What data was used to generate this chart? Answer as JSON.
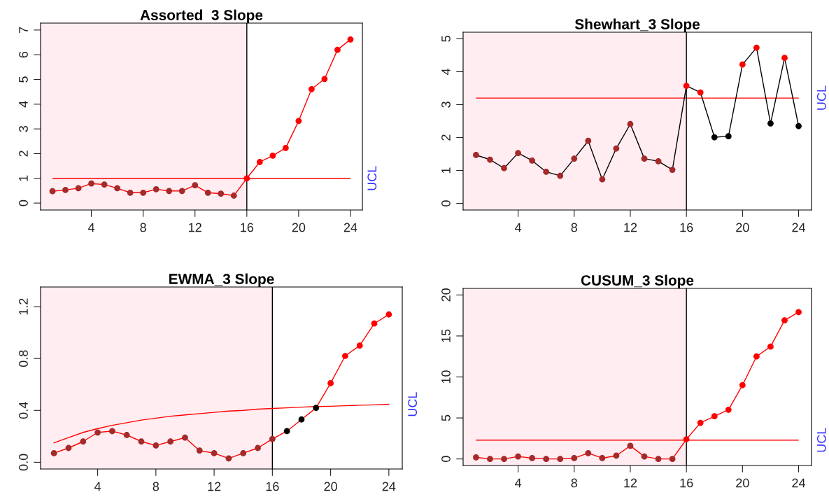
{
  "chart_data": [
    {
      "type": "line",
      "title": "Assorted  3 Slope",
      "x": [
        1,
        2,
        3,
        4,
        5,
        6,
        7,
        8,
        9,
        10,
        11,
        12,
        13,
        14,
        15,
        16,
        17,
        18,
        19,
        20,
        21,
        22,
        23,
        24
      ],
      "series": [
        {
          "color": "#ff0000",
          "values": [
            0.48,
            0.53,
            0.6,
            0.79,
            0.75,
            0.6,
            0.42,
            0.42,
            0.56,
            0.49,
            0.49,
            0.72,
            0.42,
            0.38,
            0.3,
            1.0,
            1.66,
            1.92,
            2.23,
            3.32,
            4.61,
            5.02,
            6.2,
            6.62
          ],
          "colors": [
            "#a52a2a",
            "#a52a2a",
            "#a52a2a",
            "#a52a2a",
            "#a52a2a",
            "#a52a2a",
            "#a52a2a",
            "#a52a2a",
            "#a52a2a",
            "#a52a2a",
            "#a52a2a",
            "#a52a2a",
            "#a52a2a",
            "#a52a2a",
            "#a52a2a",
            "#ff0000",
            "#ff0000",
            "#ff0000",
            "#ff0000",
            "#ff0000",
            "#ff0000",
            "#ff0000",
            "#ff0000",
            "#ff0000"
          ]
        }
      ],
      "ref_lines": [
        {
          "axis": "y",
          "value": 1.0,
          "label": "UCL",
          "color": "#ff0000"
        },
        {
          "axis": "x",
          "value": 16,
          "color": "#000000"
        }
      ],
      "bands": [
        {
          "axis": "x",
          "from": 0.08,
          "to": 16,
          "color": "#ffedf1"
        }
      ],
      "xlim": [
        0.08,
        24.92
      ],
      "xticks": [
        4,
        8,
        12,
        16,
        20,
        24
      ],
      "ylim": [
        -0.28,
        7.28
      ],
      "yticks": [
        0,
        1,
        2,
        3,
        4,
        5,
        6,
        7
      ],
      "marker": "circle",
      "grid": false,
      "legend": false
    },
    {
      "type": "line",
      "title": "Shewhart_3 Slope",
      "x": [
        1,
        2,
        3,
        4,
        5,
        6,
        7,
        8,
        9,
        10,
        11,
        12,
        13,
        14,
        15,
        16,
        17,
        18,
        19,
        20,
        21,
        22,
        23,
        24
      ],
      "series": [
        {
          "color": "#000000",
          "values": [
            1.47,
            1.33,
            1.07,
            1.53,
            1.3,
            0.96,
            0.84,
            1.36,
            1.9,
            0.73,
            1.67,
            2.41,
            1.36,
            1.28,
            1.02,
            3.57,
            3.37,
            2.01,
            2.04,
            4.22,
            4.73,
            2.43,
            4.42,
            2.35
          ],
          "colors": [
            "#a52a2a",
            "#a52a2a",
            "#a52a2a",
            "#a52a2a",
            "#a52a2a",
            "#a52a2a",
            "#a52a2a",
            "#a52a2a",
            "#a52a2a",
            "#a52a2a",
            "#a52a2a",
            "#a52a2a",
            "#a52a2a",
            "#a52a2a",
            "#a52a2a",
            "#ff0000",
            "#ff0000",
            "#000000",
            "#000000",
            "#ff0000",
            "#ff0000",
            "#000000",
            "#ff0000",
            "#000000"
          ]
        }
      ],
      "ref_lines": [
        {
          "axis": "y",
          "value": 3.2,
          "label": "UCL",
          "color": "#ff0000"
        },
        {
          "axis": "x",
          "value": 16,
          "color": "#000000"
        }
      ],
      "bands": [
        {
          "axis": "x",
          "from": 0.08,
          "to": 16,
          "color": "#ffedf1"
        }
      ],
      "xlim": [
        0.08,
        24.92
      ],
      "xticks": [
        4,
        8,
        12,
        16,
        20,
        24
      ],
      "ylim": [
        -0.2,
        5.2
      ],
      "yticks": [
        0,
        1,
        2,
        3,
        4,
        5
      ],
      "marker": "circle",
      "grid": false,
      "legend": false
    },
    {
      "type": "line",
      "title": "EWMA_3 Slope",
      "x": [
        1,
        2,
        3,
        4,
        5,
        6,
        7,
        8,
        9,
        10,
        11,
        12,
        13,
        14,
        15,
        16,
        17,
        18,
        19,
        20,
        21,
        22,
        23,
        24
      ],
      "series": [
        {
          "color": "#ff0000",
          "values": [
            0.07,
            0.11,
            0.16,
            0.23,
            0.24,
            0.21,
            0.16,
            0.13,
            0.16,
            0.19,
            0.09,
            0.07,
            0.03,
            0.07,
            0.11,
            0.18,
            0.24,
            0.33,
            0.42,
            0.61,
            0.82,
            0.9,
            1.07,
            1.14
          ],
          "colors": [
            "#a52a2a",
            "#a52a2a",
            "#a52a2a",
            "#a52a2a",
            "#a52a2a",
            "#a52a2a",
            "#a52a2a",
            "#a52a2a",
            "#a52a2a",
            "#a52a2a",
            "#a52a2a",
            "#a52a2a",
            "#a52a2a",
            "#a52a2a",
            "#a52a2a",
            "#a52a2a",
            "#000000",
            "#000000",
            "#000000",
            "#ff0000",
            "#ff0000",
            "#ff0000",
            "#ff0000",
            "#ff0000"
          ]
        },
        {
          "name": "UCL",
          "color": "#ff0000",
          "marker": "none",
          "values": [
            0.15,
            0.19,
            0.23,
            0.26,
            0.285,
            0.305,
            0.325,
            0.34,
            0.355,
            0.365,
            0.375,
            0.385,
            0.395,
            0.4,
            0.41,
            0.415,
            0.42,
            0.425,
            0.43,
            0.432,
            0.436,
            0.44,
            0.443,
            0.447
          ]
        }
      ],
      "ref_lines": [
        {
          "axis": "x",
          "value": 16,
          "color": "#000000"
        }
      ],
      "bands": [
        {
          "axis": "x",
          "from": 0.08,
          "to": 16,
          "color": "#ffedf1"
        }
      ],
      "xlim": [
        0.08,
        24.92
      ],
      "xticks": [
        4,
        8,
        12,
        16,
        20,
        24
      ],
      "ylim": [
        -0.052,
        1.352
      ],
      "yticks": [
        {
          "value": 0,
          "label": "0.0"
        },
        0.4,
        0.8,
        1.2
      ],
      "marker": "circle",
      "grid": false,
      "legend": false
    },
    {
      "type": "line",
      "title": "CUSUM_3 Slope",
      "x": [
        1,
        2,
        3,
        4,
        5,
        6,
        7,
        8,
        9,
        10,
        11,
        12,
        13,
        14,
        15,
        16,
        17,
        18,
        19,
        20,
        21,
        22,
        23,
        24
      ],
      "series": [
        {
          "color": "#ff0000",
          "values": [
            0.2,
            0,
            0,
            0.3,
            0.1,
            0,
            0,
            0.1,
            0.7,
            0.1,
            0.4,
            1.6,
            0.3,
            0,
            0,
            2.4,
            4.4,
            5.2,
            6.0,
            9.0,
            12.5,
            13.7,
            16.9,
            17.9
          ],
          "colors": [
            "#a52a2a",
            "#a52a2a",
            "#a52a2a",
            "#a52a2a",
            "#a52a2a",
            "#a52a2a",
            "#a52a2a",
            "#a52a2a",
            "#a52a2a",
            "#a52a2a",
            "#a52a2a",
            "#a52a2a",
            "#a52a2a",
            "#a52a2a",
            "#a52a2a",
            "#ff0000",
            "#ff0000",
            "#ff0000",
            "#ff0000",
            "#ff0000",
            "#ff0000",
            "#ff0000",
            "#ff0000",
            "#ff0000"
          ]
        }
      ],
      "ref_lines": [
        {
          "axis": "y",
          "value": 2.3,
          "label": "UCL",
          "color": "#ff0000"
        },
        {
          "axis": "x",
          "value": 16,
          "color": "#000000"
        }
      ],
      "bands": [
        {
          "axis": "x",
          "from": 0.08,
          "to": 16,
          "color": "#ffedf1"
        }
      ],
      "xlim": [
        0.08,
        24.92
      ],
      "xticks": [
        4,
        8,
        12,
        16,
        20,
        24
      ],
      "ylim": [
        -0.8,
        20.8
      ],
      "yticks": [
        0,
        5,
        10,
        15,
        20
      ],
      "marker": "circle",
      "grid": false,
      "legend": false
    }
  ]
}
